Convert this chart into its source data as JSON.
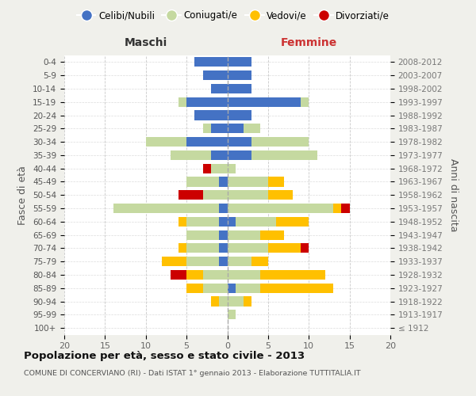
{
  "age_groups": [
    "100+",
    "95-99",
    "90-94",
    "85-89",
    "80-84",
    "75-79",
    "70-74",
    "65-69",
    "60-64",
    "55-59",
    "50-54",
    "45-49",
    "40-44",
    "35-39",
    "30-34",
    "25-29",
    "20-24",
    "15-19",
    "10-14",
    "5-9",
    "0-4"
  ],
  "birth_years": [
    "≤ 1912",
    "1913-1917",
    "1918-1922",
    "1923-1927",
    "1928-1932",
    "1933-1937",
    "1938-1942",
    "1943-1947",
    "1948-1952",
    "1953-1957",
    "1958-1962",
    "1963-1967",
    "1968-1972",
    "1973-1977",
    "1978-1982",
    "1983-1987",
    "1988-1992",
    "1993-1997",
    "1998-2002",
    "2003-2007",
    "2008-2012"
  ],
  "maschi": {
    "celibi": [
      0,
      0,
      0,
      0,
      0,
      1,
      1,
      1,
      1,
      1,
      0,
      1,
      0,
      2,
      5,
      2,
      4,
      5,
      2,
      3,
      4
    ],
    "coniugati": [
      0,
      0,
      1,
      3,
      3,
      4,
      4,
      4,
      4,
      13,
      3,
      4,
      2,
      5,
      5,
      1,
      0,
      1,
      0,
      0,
      0
    ],
    "vedovi": [
      0,
      0,
      1,
      2,
      2,
      3,
      1,
      0,
      1,
      0,
      0,
      0,
      0,
      0,
      0,
      0,
      0,
      0,
      0,
      0,
      0
    ],
    "divorziati": [
      0,
      0,
      0,
      0,
      2,
      0,
      0,
      0,
      0,
      0,
      3,
      0,
      1,
      0,
      0,
      0,
      0,
      0,
      0,
      0,
      0
    ]
  },
  "femmine": {
    "nubili": [
      0,
      0,
      0,
      1,
      0,
      0,
      0,
      0,
      1,
      0,
      0,
      0,
      0,
      3,
      3,
      2,
      3,
      9,
      3,
      3,
      3
    ],
    "coniugate": [
      0,
      1,
      2,
      3,
      4,
      3,
      5,
      4,
      5,
      13,
      5,
      5,
      1,
      8,
      7,
      2,
      0,
      1,
      0,
      0,
      0
    ],
    "vedove": [
      0,
      0,
      1,
      9,
      8,
      2,
      4,
      3,
      4,
      1,
      3,
      2,
      0,
      0,
      0,
      0,
      0,
      0,
      0,
      0,
      0
    ],
    "divorziate": [
      0,
      0,
      0,
      0,
      0,
      0,
      1,
      0,
      0,
      1,
      0,
      0,
      0,
      0,
      0,
      0,
      0,
      0,
      0,
      0,
      0
    ]
  },
  "colors": {
    "celibi_nubili": "#4472c4",
    "coniugati": "#c5d9a0",
    "vedovi": "#ffc000",
    "divorziati": "#cc0000"
  },
  "xlim": 20,
  "title": "Popolazione per età, sesso e stato civile - 2013",
  "subtitle": "COMUNE DI CONCERVIANO (RI) - Dati ISTAT 1° gennaio 2013 - Elaborazione TUTTITALIA.IT",
  "ylabel_left": "Fasce di età",
  "ylabel_right": "Anni di nascita",
  "label_maschi": "Maschi",
  "label_femmine": "Femmine",
  "bg_color": "#f0f0eb",
  "plot_bg": "#ffffff",
  "legend": [
    "Celibi/Nubili",
    "Coniugati/e",
    "Vedovi/e",
    "Divorziati/e"
  ]
}
